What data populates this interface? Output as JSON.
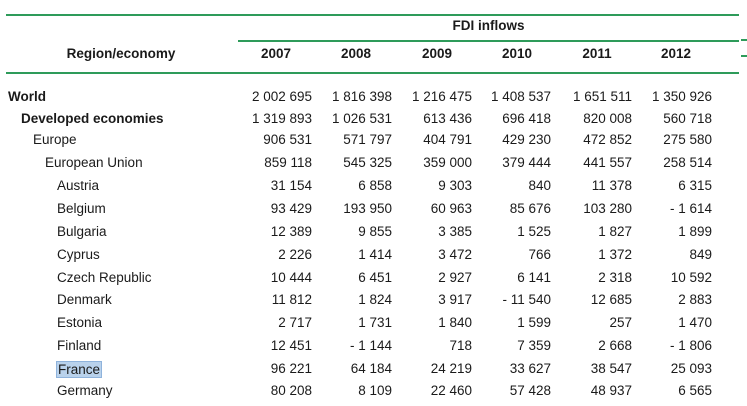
{
  "table": {
    "title": "FDI inflows",
    "region_header": "Region/economy",
    "years": [
      "2007",
      "2008",
      "2009",
      "2010",
      "2011",
      "2012"
    ],
    "rows": [
      {
        "label": "World",
        "values": [
          "2 002 695",
          "1 816 398",
          "1 216 475",
          "1 408 537",
          "1 651 511",
          "1 350 926"
        ]
      },
      {
        "label": "Developed economies",
        "values": [
          "1 319 893",
          "1 026 531",
          "613 436",
          "696 418",
          "820 008",
          "560 718"
        ]
      },
      {
        "label": "Europe",
        "values": [
          "906 531",
          "571 797",
          "404 791",
          "429 230",
          "472 852",
          "275 580"
        ]
      },
      {
        "label": "European Union",
        "values": [
          "859 118",
          "545 325",
          "359 000",
          "379 444",
          "441 557",
          "258 514"
        ]
      },
      {
        "label": "Austria",
        "values": [
          "31 154",
          "6 858",
          "9 303",
          "840",
          "11 378",
          "6 315"
        ]
      },
      {
        "label": "Belgium",
        "values": [
          "93 429",
          "193 950",
          "60 963",
          "85 676",
          "103 280",
          "- 1 614"
        ]
      },
      {
        "label": "Bulgaria",
        "values": [
          "12 389",
          "9 855",
          "3 385",
          "1 525",
          "1 827",
          "1 899"
        ]
      },
      {
        "label": "Cyprus",
        "values": [
          "2 226",
          "1 414",
          "3 472",
          "766",
          "1 372",
          "849"
        ]
      },
      {
        "label": "Czech Republic",
        "values": [
          "10 444",
          "6 451",
          "2 927",
          "6 141",
          "2 318",
          "10 592"
        ]
      },
      {
        "label": "Denmark",
        "values": [
          "11 812",
          "1 824",
          "3 917",
          "- 11 540",
          "12 685",
          "2 883"
        ]
      },
      {
        "label": "Estonia",
        "values": [
          "2 717",
          "1 731",
          "1 840",
          "1 599",
          "257",
          "1 470"
        ]
      },
      {
        "label": "Finland",
        "values": [
          "12 451",
          "- 1 144",
          "718",
          "7 359",
          "2 668",
          "- 1 806"
        ]
      },
      {
        "label": "France",
        "values": [
          "96 221",
          "64 184",
          "24 219",
          "33 627",
          "38 547",
          "25 093"
        ]
      },
      {
        "label": "Germany",
        "values": [
          "80 208",
          "8 109",
          "22 460",
          "57 428",
          "48 937",
          "6 565"
        ]
      }
    ]
  },
  "colors": {
    "rule": "#2e9b5a",
    "selection": "#b9d2ec"
  }
}
